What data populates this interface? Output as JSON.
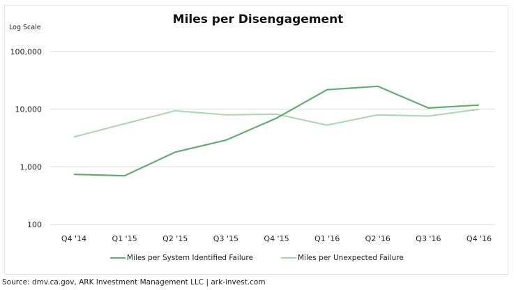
{
  "chart_data": {
    "type": "line",
    "title": "Miles per Disengagement",
    "scale_note": "Log Scale",
    "xlabel": "",
    "ylabel": "",
    "yscale": "log",
    "ylim": [
      100,
      100000
    ],
    "yticks": [
      100,
      1000,
      10000,
      100000
    ],
    "ytick_labels": [
      "100",
      "1,000",
      "10,000",
      "100,000"
    ],
    "grid": true,
    "legend_position": "bottom",
    "categories": [
      "Q4 '14",
      "Q1 '15",
      "Q2 '15",
      "Q3 '15",
      "Q4 '15",
      "Q1 '16",
      "Q2 '16",
      "Q3 '16",
      "Q4 '16"
    ],
    "series": [
      {
        "name": "Miles per System Identified Failure",
        "color": "#5fae6e",
        "values": [
          740,
          700,
          1800,
          2900,
          7000,
          21800,
          25000,
          10500,
          11800
        ]
      },
      {
        "name": "Miles per Unexpected Failure",
        "color": "#a6d8b0",
        "values": [
          3300,
          5600,
          9400,
          8000,
          8200,
          5300,
          8000,
          7600,
          10000
        ]
      }
    ]
  },
  "footer": {
    "source": "Source: dmv.ca.gov, ARK Investment Management LLC | ark-invest.com"
  }
}
